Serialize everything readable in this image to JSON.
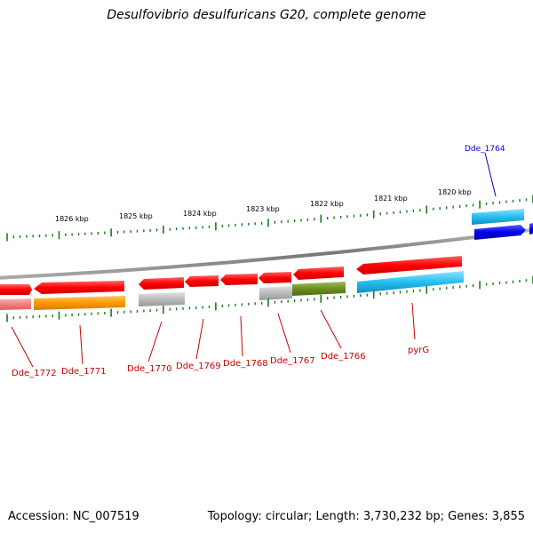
{
  "title": "Desulfovibrio desulfuricans G20, complete genome",
  "footer": {
    "accession": "Accession: NC_007519",
    "summary": "Topology: circular; Length: 3,730,232 bp; Genes: 3,855"
  },
  "scale": {
    "ticks": [
      "1826 kbp",
      "1825 kbp",
      "1824 kbp",
      "1823 kbp",
      "1822 kbp",
      "1821 kbp",
      "1820 kbp"
    ]
  },
  "colors": {
    "backbone": "#8a8a8a",
    "gene_red": "#ff0000",
    "gene_locus_label": "#cc0000",
    "highlight_label": "#0000cc",
    "tick": "#1a7a1a",
    "cyan": "#26bff0",
    "blue": "#0000ee",
    "orange": "#ff9900",
    "olive": "#6b8e23",
    "gray": "#b5b5b5",
    "pink": "#f08080"
  },
  "genes": {
    "labels": [
      "Dde_1764",
      "Dde_1772",
      "Dde_1771",
      "Dde_1770",
      "Dde_1769",
      "Dde_1768",
      "Dde_1767",
      "Dde_1766",
      "pyrG"
    ]
  }
}
